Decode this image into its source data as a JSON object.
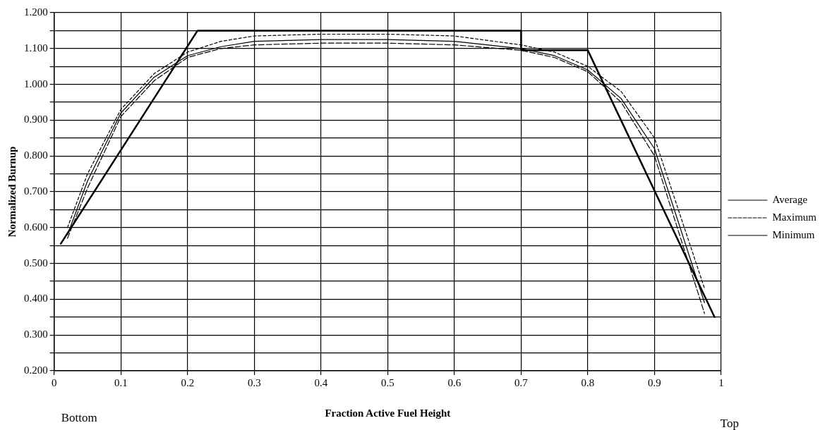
{
  "chart_data": {
    "type": "line",
    "xlabel": "Fraction Active Fuel Height",
    "ylabel": "Normalized Burnup",
    "annotations": [
      "Bottom",
      "Top"
    ],
    "xlim": [
      0,
      1
    ],
    "xticks": [
      0,
      0.1,
      0.2,
      0.3,
      0.4,
      0.5,
      0.6,
      0.7,
      0.8,
      0.9,
      1
    ],
    "ylim": [
      0.2,
      1.2
    ],
    "yticks": [
      {
        "value": 0.2,
        "label": "0.200"
      },
      {
        "value": 0.25,
        "label": null
      },
      {
        "value": 0.3,
        "label": "0.300"
      },
      {
        "value": 0.35,
        "label": null
      },
      {
        "value": 0.4,
        "label": "0.400"
      },
      {
        "value": 0.45,
        "label": null
      },
      {
        "value": 0.5,
        "label": "0.500"
      },
      {
        "value": 0.55,
        "label": null
      },
      {
        "value": 0.6,
        "label": "0.600"
      },
      {
        "value": 0.65,
        "label": null
      },
      {
        "value": 0.7,
        "label": "0.700"
      },
      {
        "value": 0.75,
        "label": null
      },
      {
        "value": 0.8,
        "label": "0.800"
      },
      {
        "value": 0.85,
        "label": null
      },
      {
        "value": 0.9,
        "label": "0.900"
      },
      {
        "value": 0.95,
        "label": null
      },
      {
        "value": 1.0,
        "label": "1.000"
      },
      {
        "value": 1.05,
        "label": null
      },
      {
        "value": 1.1,
        "label": "1.100"
      },
      {
        "value": 1.15,
        "label": null
      },
      {
        "value": 1.2,
        "label": "1.200"
      }
    ],
    "grid": true,
    "legend": "right",
    "marker": "none",
    "x": [
      0.02,
      0.05,
      0.1,
      0.15,
      0.2,
      0.25,
      0.3,
      0.4,
      0.5,
      0.6,
      0.7,
      0.75,
      0.8,
      0.85,
      0.9,
      0.975
    ],
    "series": [
      {
        "name": "Average",
        "color": "#000000",
        "line_style": "solid",
        "values": [
          0.58,
          0.73,
          0.92,
          1.02,
          1.08,
          1.105,
          1.12,
          1.125,
          1.125,
          1.12,
          1.1,
          1.08,
          1.04,
          0.96,
          0.82,
          0.39
        ]
      },
      {
        "name": "Maximum",
        "color": "#000000",
        "line_style": "dashed",
        "values": [
          0.6,
          0.75,
          0.93,
          1.03,
          1.09,
          1.12,
          1.135,
          1.14,
          1.14,
          1.135,
          1.11,
          1.09,
          1.05,
          0.98,
          0.85,
          0.43
        ]
      },
      {
        "name": "Minimum",
        "color": "#000000",
        "line_style": "dashed",
        "values": [
          0.57,
          0.71,
          0.91,
          1.01,
          1.075,
          1.1,
          1.11,
          1.115,
          1.115,
          1.11,
          1.095,
          1.075,
          1.035,
          0.95,
          0.8,
          0.36
        ]
      },
      {
        "color": "#000000",
        "line_style": "solid",
        "x": [
          0.01,
          0.215,
          0.7,
          0.7,
          0.8,
          0.99
        ],
        "values": [
          0.555,
          1.15,
          1.15,
          1.095,
          1.095,
          0.35
        ]
      }
    ]
  }
}
